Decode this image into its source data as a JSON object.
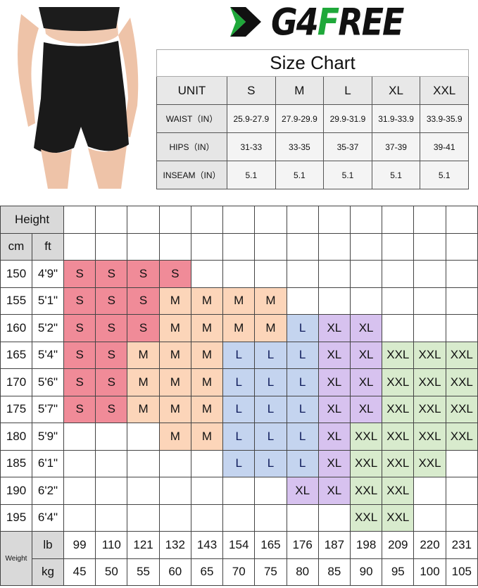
{
  "brand": {
    "logo_text_1": "G4",
    "logo_text_2": "F",
    "logo_text_3": "REE",
    "accent": "#1fa83a"
  },
  "size_chart": {
    "title": "Size Chart",
    "header": [
      "UNIT",
      "S",
      "M",
      "L",
      "XL",
      "XXL"
    ],
    "rows": [
      {
        "label": "WAIST（IN）",
        "values": [
          "25.9-27.9",
          "27.9-29.9",
          "29.9-31.9",
          "31.9-33.9",
          "33.9-35.9"
        ]
      },
      {
        "label": "HIPS（IN）",
        "values": [
          "31-33",
          "33-35",
          "35-37",
          "37-39",
          "39-41"
        ]
      },
      {
        "label": "INSEAM（IN）",
        "values": [
          "5.1",
          "5.1",
          "5.1",
          "5.1",
          "5.1"
        ]
      }
    ]
  },
  "fit_grid": {
    "height_label": "Height",
    "cm_label": "cm",
    "ft_label": "ft",
    "weight_label": "Weight",
    "lb_label": "lb",
    "kg_label": "kg",
    "lb": [
      "99",
      "110",
      "121",
      "132",
      "143",
      "154",
      "165",
      "176",
      "187",
      "198",
      "209",
      "220",
      "231"
    ],
    "kg": [
      "45",
      "50",
      "55",
      "60",
      "65",
      "70",
      "75",
      "80",
      "85",
      "90",
      "95",
      "100",
      "105"
    ],
    "rows": [
      {
        "cm": "150",
        "ft": "4'9\"",
        "sizes": [
          "S",
          "S",
          "S",
          "S",
          "",
          "",
          "",
          "",
          "",
          "",
          "",
          "",
          ""
        ]
      },
      {
        "cm": "155",
        "ft": "5'1\"",
        "sizes": [
          "S",
          "S",
          "S",
          "M",
          "M",
          "M",
          "M",
          "",
          "",
          "",
          "",
          "",
          ""
        ]
      },
      {
        "cm": "160",
        "ft": "5'2\"",
        "sizes": [
          "S",
          "S",
          "S",
          "M",
          "M",
          "M",
          "M",
          "L",
          "XL",
          "XL",
          "",
          "",
          ""
        ]
      },
      {
        "cm": "165",
        "ft": "5'4\"",
        "sizes": [
          "S",
          "S",
          "M",
          "M",
          "M",
          "L",
          "L",
          "L",
          "XL",
          "XL",
          "XXL",
          "XXL",
          "XXL"
        ]
      },
      {
        "cm": "170",
        "ft": "5'6\"",
        "sizes": [
          "S",
          "S",
          "M",
          "M",
          "M",
          "L",
          "L",
          "L",
          "XL",
          "XL",
          "XXL",
          "XXL",
          "XXL"
        ]
      },
      {
        "cm": "175",
        "ft": "5'7\"",
        "sizes": [
          "S",
          "S",
          "M",
          "M",
          "M",
          "L",
          "L",
          "L",
          "XL",
          "XL",
          "XXL",
          "XXL",
          "XXL"
        ]
      },
      {
        "cm": "180",
        "ft": "5'9\"",
        "sizes": [
          "",
          "",
          "",
          "M",
          "M",
          "L",
          "L",
          "L",
          "XL",
          "XXL",
          "XXL",
          "XXL",
          "XXL"
        ]
      },
      {
        "cm": "185",
        "ft": "6'1\"",
        "sizes": [
          "",
          "",
          "",
          "",
          "",
          "L",
          "L",
          "L",
          "XL",
          "XXL",
          "XXL",
          "XXL",
          ""
        ]
      },
      {
        "cm": "190",
        "ft": "6'2\"",
        "sizes": [
          "",
          "",
          "",
          "",
          "",
          "",
          "",
          "XL",
          "XL",
          "XXL",
          "XXL",
          "",
          ""
        ]
      },
      {
        "cm": "195",
        "ft": "6'4\"",
        "sizes": [
          "",
          "",
          "",
          "",
          "",
          "",
          "",
          "",
          "",
          "XXL",
          "XXL",
          "",
          ""
        ]
      }
    ],
    "colors": {
      "S": "#f08b98",
      "M": "#fcd5b9",
      "L": "#c4d4ef",
      "XL": "#d7c2ef",
      "XXL": "#d8ebcd"
    }
  }
}
